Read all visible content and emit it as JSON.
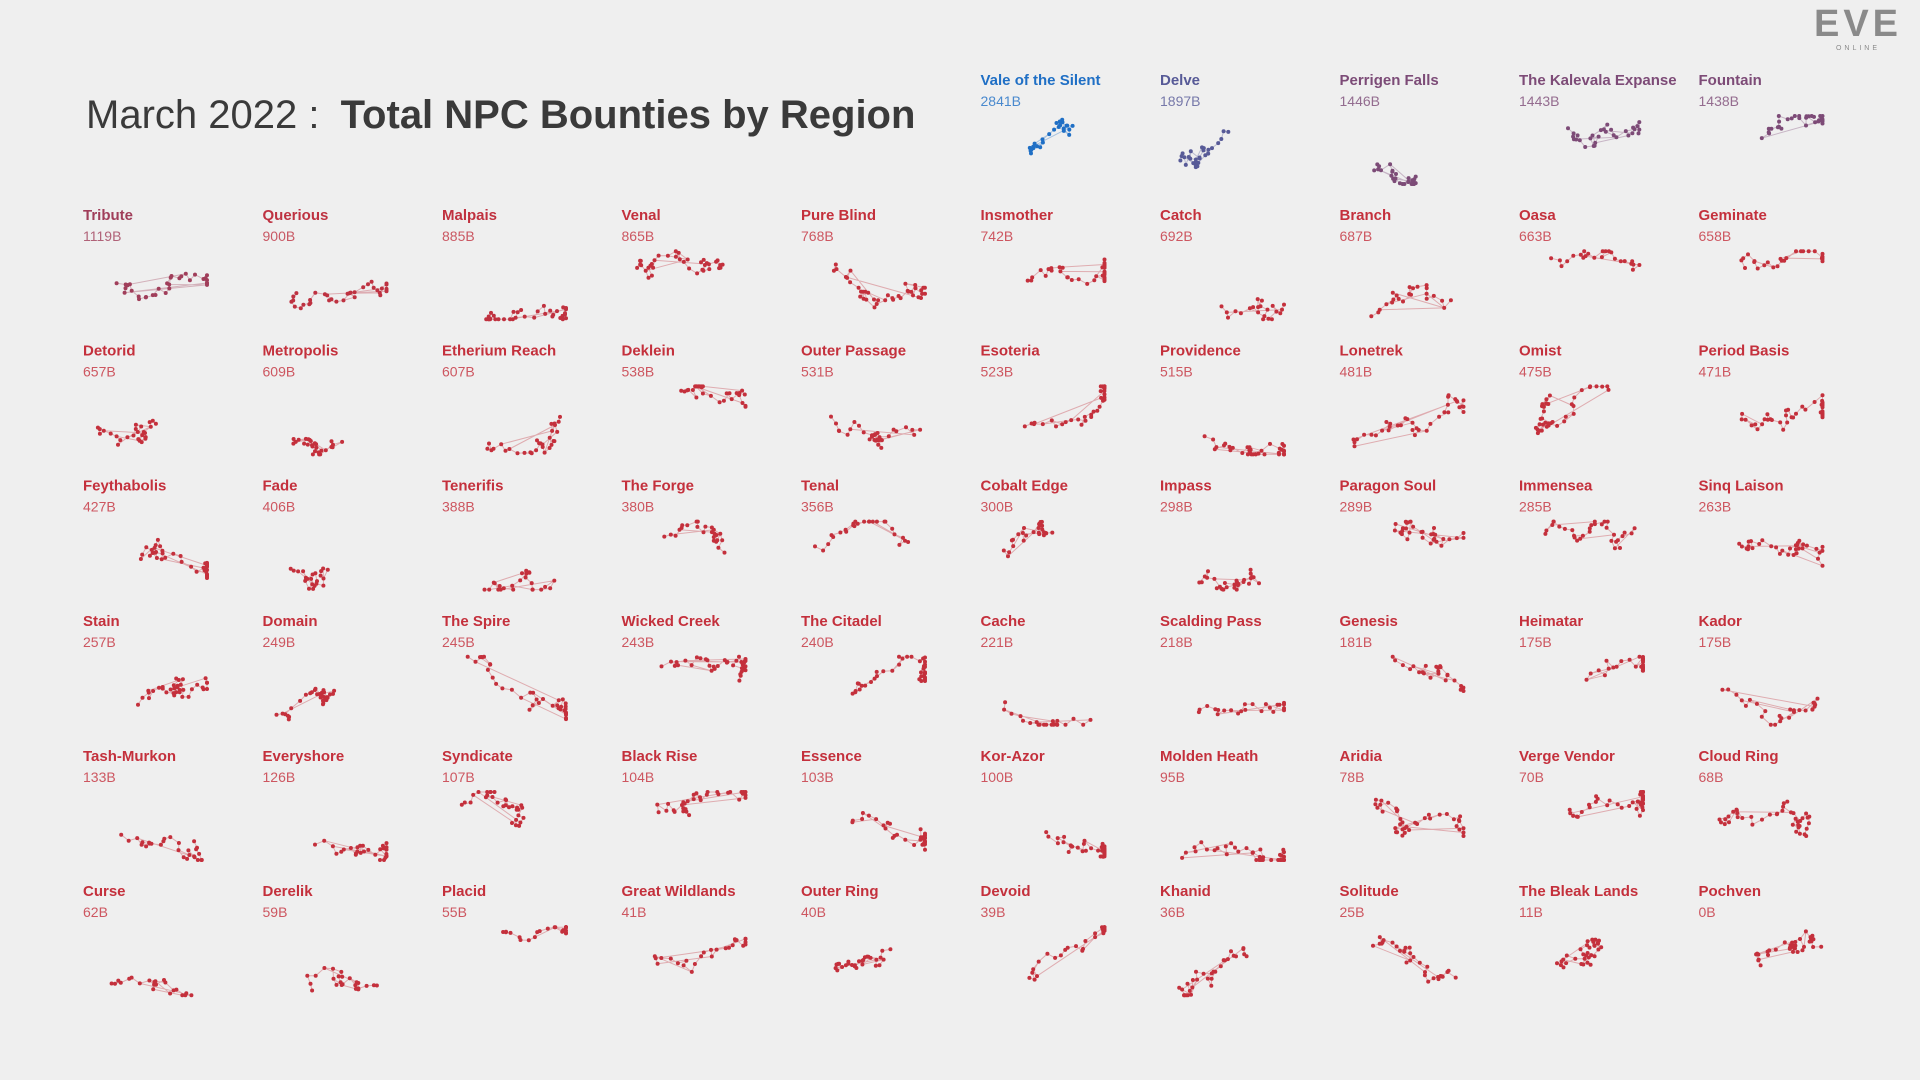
{
  "logo": {
    "main": "EVE",
    "sub": "ONLINE"
  },
  "chart_data": {
    "type": "small-multiples",
    "title_prefix": "March 2022 :",
    "title": "Total NPC Bounties by Region",
    "color_scale": [
      "#c4303c",
      "#1f6fc5"
    ],
    "categories": [
      "Vale of the Silent",
      "Delve",
      "Perrigen Falls",
      "The Kalevala Expanse",
      "Fountain",
      "Tribute",
      "Querious",
      "Malpais",
      "Venal",
      "Pure Blind",
      "Insmother",
      "Catch",
      "Branch",
      "Oasa",
      "Geminate",
      "Detorid",
      "Metropolis",
      "Etherium Reach",
      "Deklein",
      "Outer Passage",
      "Esoteria",
      "Providence",
      "Lonetrek",
      "Omist",
      "Period Basis",
      "Feythabolis",
      "Fade",
      "Tenerifis",
      "The Forge",
      "Tenal",
      "Cobalt Edge",
      "Impass",
      "Paragon Soul",
      "Immensea",
      "Sinq Laison",
      "Stain",
      "Domain",
      "The Spire",
      "Wicked Creek",
      "The Citadel",
      "Cache",
      "Scalding Pass",
      "Genesis",
      "Heimatar",
      "Kador",
      "Tash-Murkon",
      "Everyshore",
      "Syndicate",
      "Black Rise",
      "Essence",
      "Kor-Azor",
      "Molden Heath",
      "Aridia",
      "Verge Vendor",
      "Cloud Ring",
      "Curse",
      "Derelik",
      "Placid",
      "Great Wildlands",
      "Outer Ring",
      "Devoid",
      "Khanid",
      "Solitude",
      "The Bleak Lands",
      "Pochven"
    ],
    "values": [
      2841,
      1897,
      1446,
      1443,
      1438,
      1119,
      900,
      885,
      865,
      768,
      742,
      692,
      687,
      663,
      658,
      657,
      609,
      607,
      538,
      531,
      523,
      515,
      481,
      475,
      471,
      427,
      406,
      388,
      380,
      356,
      300,
      298,
      289,
      285,
      263,
      257,
      249,
      245,
      243,
      240,
      221,
      218,
      181,
      175,
      175,
      133,
      126,
      107,
      104,
      103,
      100,
      95,
      78,
      70,
      68,
      62,
      59,
      55,
      41,
      40,
      39,
      36,
      25,
      11,
      0
    ],
    "value_labels": [
      "2841B",
      "1897B",
      "1446B",
      "1443B",
      "1438B",
      "1119B",
      "900B",
      "885B",
      "865B",
      "768B",
      "742B",
      "692B",
      "687B",
      "663B",
      "658B",
      "657B",
      "609B",
      "607B",
      "538B",
      "531B",
      "523B",
      "515B",
      "481B",
      "475B",
      "471B",
      "427B",
      "406B",
      "388B",
      "380B",
      "356B",
      "300B",
      "298B",
      "289B",
      "285B",
      "263B",
      "257B",
      "249B",
      "245B",
      "243B",
      "240B",
      "221B",
      "218B",
      "181B",
      "175B",
      "175B",
      "133B",
      "126B",
      "107B",
      "104B",
      "103B",
      "100B",
      "95B",
      "78B",
      "70B",
      "68B",
      "62B",
      "59B",
      "55B",
      "41B",
      "40B",
      "39B",
      "36B",
      "25B",
      "11B",
      "0B"
    ]
  }
}
